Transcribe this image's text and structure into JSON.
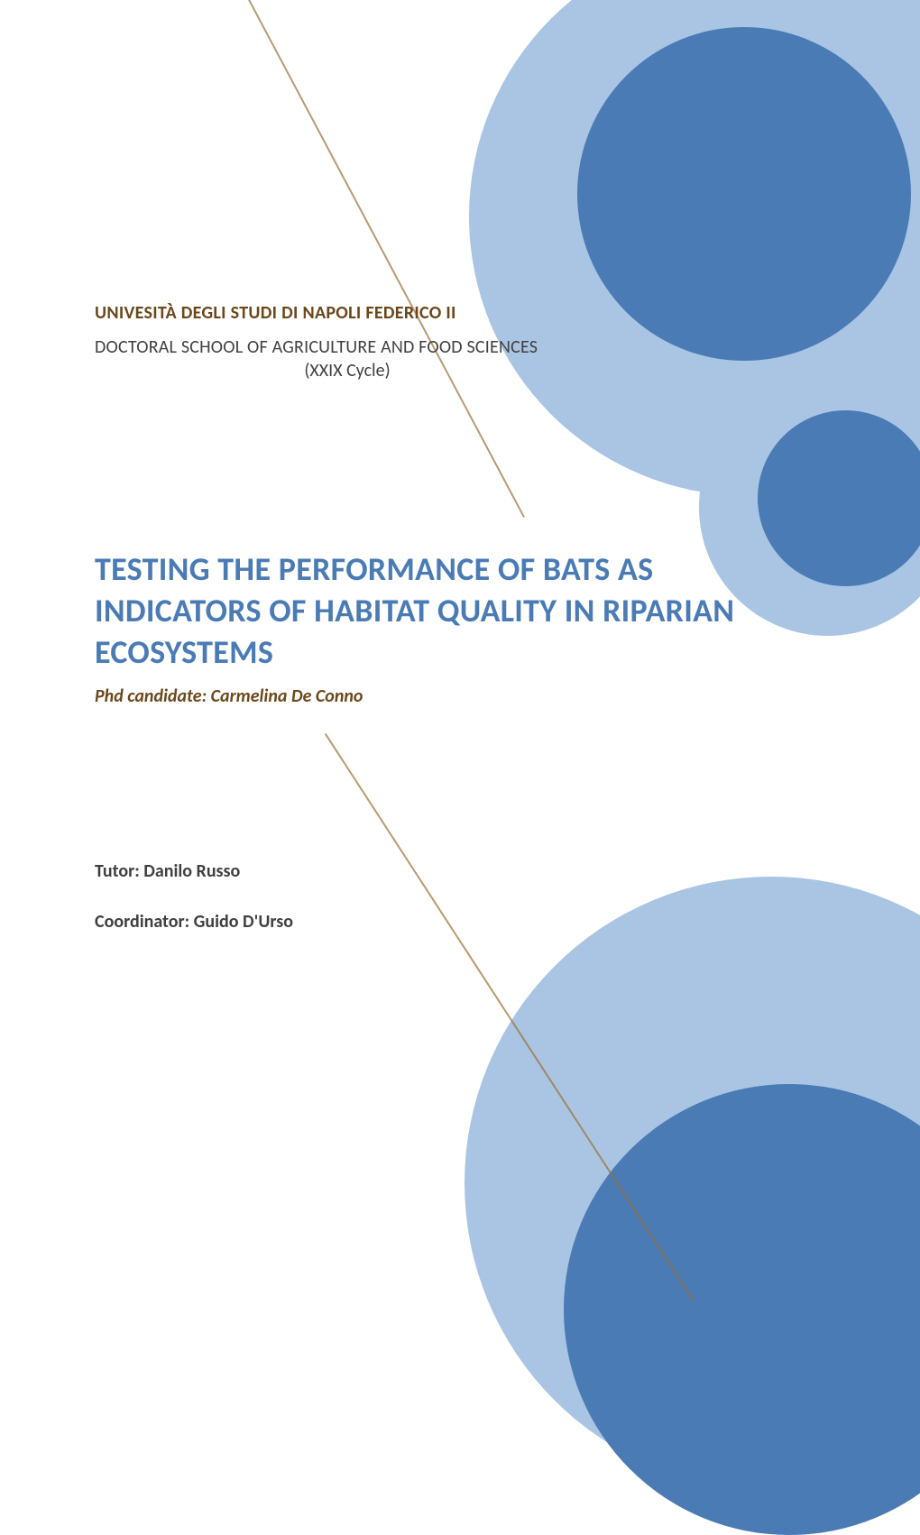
{
  "header": {
    "university": "UNIVESITÀ DEGLI STUDI DI NAPOLI FEDERICO II",
    "school": "DOCTORAL SCHOOL OF AGRICULTURE AND FOOD SCIENCES",
    "cycle": "(XXIX Cycle)"
  },
  "title": "TESTING THE PERFORMANCE OF BATS AS INDICATORS OF HABITAT QUALITY IN RIPARIAN ECOSYSTEMS",
  "candidate": "Phd candidate: Carmelina De Conno",
  "people": {
    "tutor": "Tutor: Danilo Russo",
    "coordinator": "Coordinator: Guido D'Urso"
  },
  "decor": {
    "line_color": "#9b6f32",
    "circle_light": "#a9c5e3",
    "circle_dark": "#4a7bb5",
    "text_dark": "#404040",
    "text_accent": "#6b471a",
    "title_color": "#4a7bb5",
    "background": "#ffffff"
  },
  "typography": {
    "university_fontsize": 20,
    "school_fontsize": 20,
    "title_fontsize": 36,
    "candidate_fontsize": 20,
    "person_fontsize": 20
  }
}
